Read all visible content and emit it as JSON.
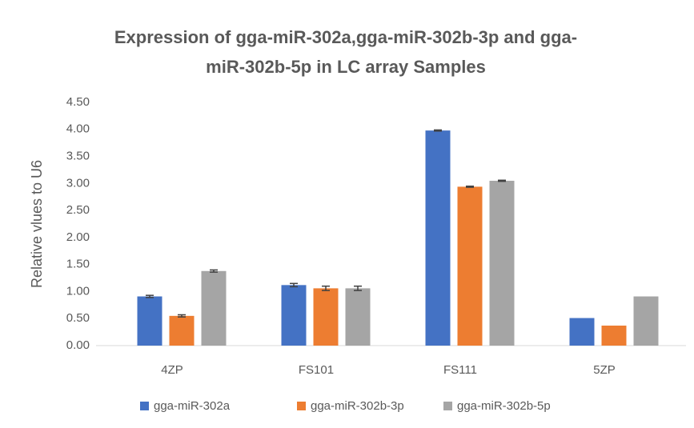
{
  "chart_data": {
    "type": "bar",
    "title": [
      "Expression of gga-miR-302a,gga-miR-302b-3p and gga-",
      "miR-302b-5p in LC array Samples"
    ],
    "ylabel": "Relative vlues to U6",
    "categories": [
      "4ZP",
      "FS101",
      "FS111",
      "5ZP"
    ],
    "series": [
      {
        "name": "gga-miR-302a",
        "color": "#4472c4",
        "values": [
          0.91,
          1.12,
          3.98,
          0.51
        ],
        "errors": [
          0.02,
          0.03,
          0.01,
          null
        ]
      },
      {
        "name": "gga-miR-302b-3p",
        "color": "#ed7d31",
        "values": [
          0.55,
          1.06,
          2.94,
          0.37
        ],
        "errors": [
          0.02,
          0.04,
          0.01,
          null
        ]
      },
      {
        "name": "gga-miR-302b-5p",
        "color": "#a5a5a5",
        "values": [
          1.38,
          1.06,
          3.05,
          0.91
        ],
        "errors": [
          0.02,
          0.04,
          0.01,
          null
        ]
      }
    ],
    "ylim": [
      0,
      4.5
    ],
    "yticks": [
      {
        "value": 0,
        "label": "0.00"
      },
      {
        "value": 0.5,
        "label": "0.50"
      },
      {
        "value": 1,
        "label": "1.00"
      },
      {
        "value": 1.5,
        "label": "1.50"
      },
      {
        "value": 2,
        "label": "2.00"
      },
      {
        "value": 2.5,
        "label": "2.50"
      },
      {
        "value": 3,
        "label": "3.00"
      },
      {
        "value": 3.5,
        "label": "3.50"
      },
      {
        "value": 4,
        "label": "4.00"
      },
      {
        "value": 4.5,
        "label": "4.50"
      }
    ],
    "grid": false,
    "legend": "bottom"
  }
}
